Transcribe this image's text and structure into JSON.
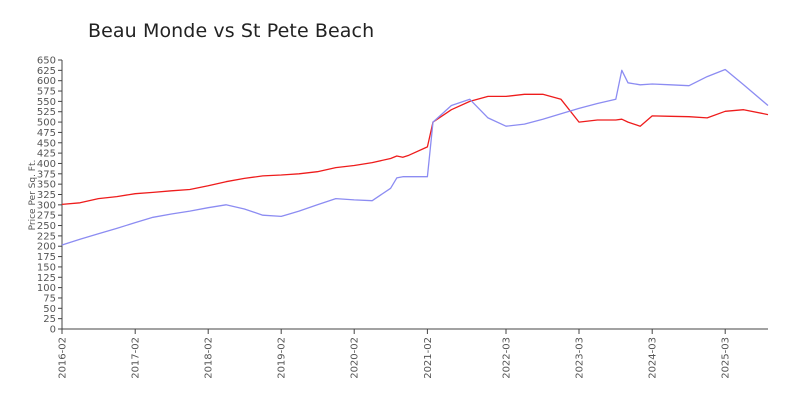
{
  "chart_data": {
    "type": "line",
    "title": "Beau Monde vs St Pete Beach",
    "ylabel": "Price Per Sq. Ft.",
    "xlabel": "",
    "ylim": [
      0,
      650
    ],
    "yticks": [
      0,
      25,
      50,
      75,
      100,
      125,
      150,
      175,
      200,
      225,
      250,
      275,
      300,
      325,
      350,
      375,
      400,
      425,
      450,
      475,
      500,
      525,
      550,
      575,
      600,
      625,
      650
    ],
    "xticks": [
      "2016-02",
      "2017-02",
      "2018-02",
      "2019-02",
      "2020-02",
      "2021-02",
      "2022-03",
      "2023-03",
      "2024-03",
      "2025-03"
    ],
    "grid": false,
    "legend": "none",
    "x": [
      "2016-02",
      "2016-05",
      "2016-08",
      "2016-11",
      "2017-02",
      "2017-05",
      "2017-08",
      "2017-11",
      "2018-02",
      "2018-05",
      "2018-08",
      "2018-11",
      "2019-02",
      "2019-03",
      "2019-05",
      "2019-08",
      "2019-11",
      "2020-02",
      "2020-05",
      "2020-08",
      "2020-09",
      "2020-10",
      "2020-11",
      "2021-02",
      "2021-03",
      "2021-06",
      "2021-09",
      "2021-12",
      "2022-03",
      "2022-06",
      "2022-09",
      "2022-12",
      "2023-03",
      "2023-06",
      "2023-09",
      "2023-10",
      "2023-11",
      "2024-01",
      "2024-03",
      "2024-06",
      "2024-09",
      "2024-12",
      "2025-03",
      "2025-06",
      "2025-10"
    ],
    "series": [
      {
        "color": "#ee1c1c",
        "values": [
          301,
          305,
          315,
          320,
          327,
          330,
          334,
          337,
          346,
          356,
          364,
          370,
          372,
          373,
          375,
          380,
          390,
          395,
          402,
          412,
          418,
          415,
          420,
          440,
          500,
          530,
          550,
          562,
          562,
          567,
          567,
          555,
          500,
          505,
          505,
          507,
          500,
          490,
          515,
          514,
          513,
          510,
          526,
          530,
          518
        ]
      },
      {
        "color": "#8c8cf2",
        "values": [
          203,
          217,
          230,
          243,
          257,
          270,
          278,
          285,
          293,
          300,
          290,
          275,
          272,
          276,
          285,
          300,
          315,
          312,
          310,
          340,
          365,
          368,
          368,
          368,
          500,
          540,
          555,
          510,
          490,
          495,
          507,
          520,
          533,
          545,
          555,
          625,
          595,
          590,
          592,
          590,
          588,
          610,
          627,
          590,
          540
        ]
      }
    ]
  }
}
